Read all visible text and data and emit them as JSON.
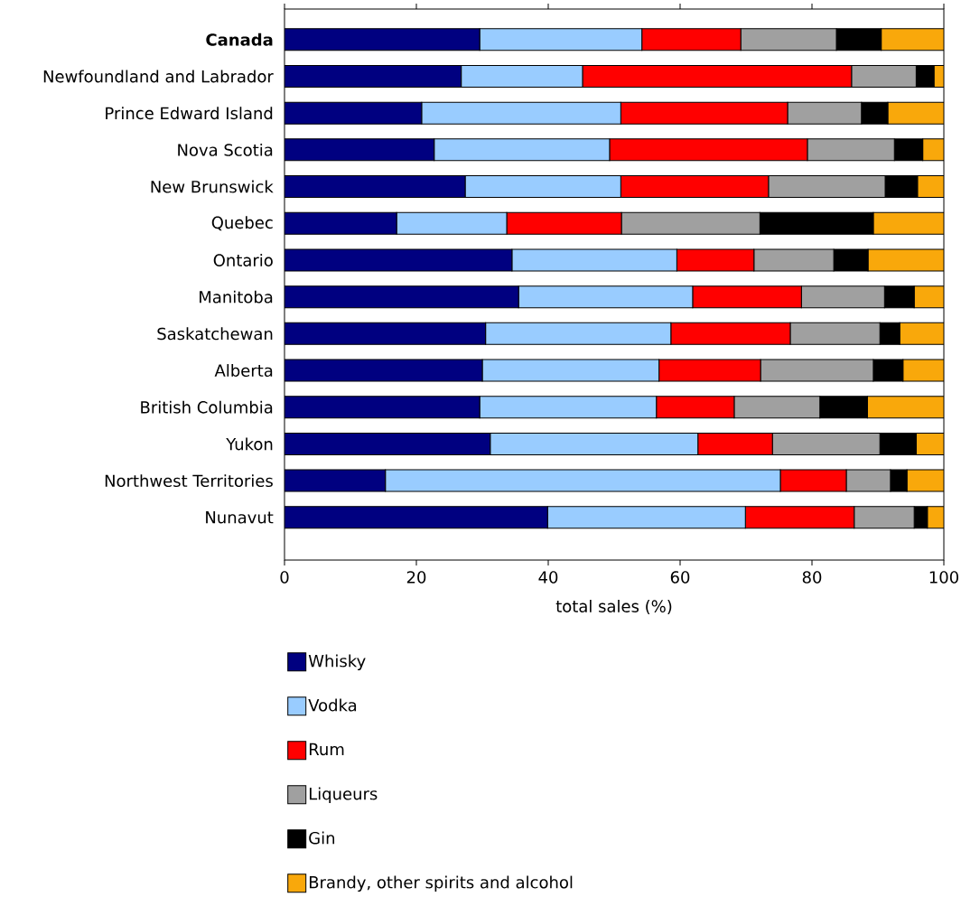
{
  "chart_data": {
    "type": "bar",
    "orientation": "horizontal",
    "stacked": true,
    "xlabel": "total sales (%)",
    "categories": [
      "**Canada**",
      "Newfoundland and Labrador",
      "Prince Edward Island",
      "Nova Scotia",
      "New Brunswick",
      "Quebec",
      "Ontario",
      "Manitoba",
      "Saskatchewan",
      "Alberta",
      "British Columbia",
      "Yukon",
      "Northwest Territories",
      "Nunavut"
    ],
    "series": [
      {
        "name": "Whisky",
        "color": "#000080",
        "values": [
          29.6,
          26.8,
          20.8,
          22.7,
          27.4,
          17.0,
          34.5,
          35.5,
          30.5,
          30.0,
          29.6,
          31.2,
          15.3,
          39.9
        ]
      },
      {
        "name": "Vodka",
        "color": "#99ccff",
        "values": [
          24.6,
          18.4,
          30.2,
          26.6,
          23.6,
          16.7,
          25.0,
          26.4,
          28.1,
          26.8,
          26.8,
          31.5,
          59.9,
          30.0
        ]
      },
      {
        "name": "Rum",
        "color": "#ff0000",
        "values": [
          15.0,
          40.8,
          25.3,
          30.0,
          22.4,
          17.4,
          11.7,
          16.5,
          18.1,
          15.4,
          11.8,
          11.3,
          10.0,
          16.5
        ]
      },
      {
        "name": "Liqueurs",
        "color": "#a0a0a0",
        "values": [
          14.5,
          9.8,
          11.2,
          13.2,
          17.7,
          21.0,
          12.1,
          12.6,
          13.6,
          17.1,
          13.0,
          16.3,
          6.7,
          9.1
        ]
      },
      {
        "name": "Gin",
        "color": "#000000",
        "values": [
          6.8,
          2.7,
          4.0,
          4.3,
          4.9,
          17.2,
          5.2,
          4.5,
          3.0,
          4.5,
          7.2,
          5.5,
          2.5,
          2.0
        ]
      },
      {
        "name": "Brandy, other spirits and alcohol",
        "color": "#f9a80b",
        "values": [
          9.5,
          1.5,
          8.5,
          3.2,
          4.0,
          10.7,
          11.5,
          4.5,
          6.7,
          6.2,
          11.6,
          4.2,
          5.6,
          2.5
        ]
      }
    ],
    "xlim": [
      0,
      100
    ],
    "xticks": [
      0,
      20,
      40,
      60,
      80,
      100
    ],
    "grid": false,
    "legend": "bottom"
  }
}
